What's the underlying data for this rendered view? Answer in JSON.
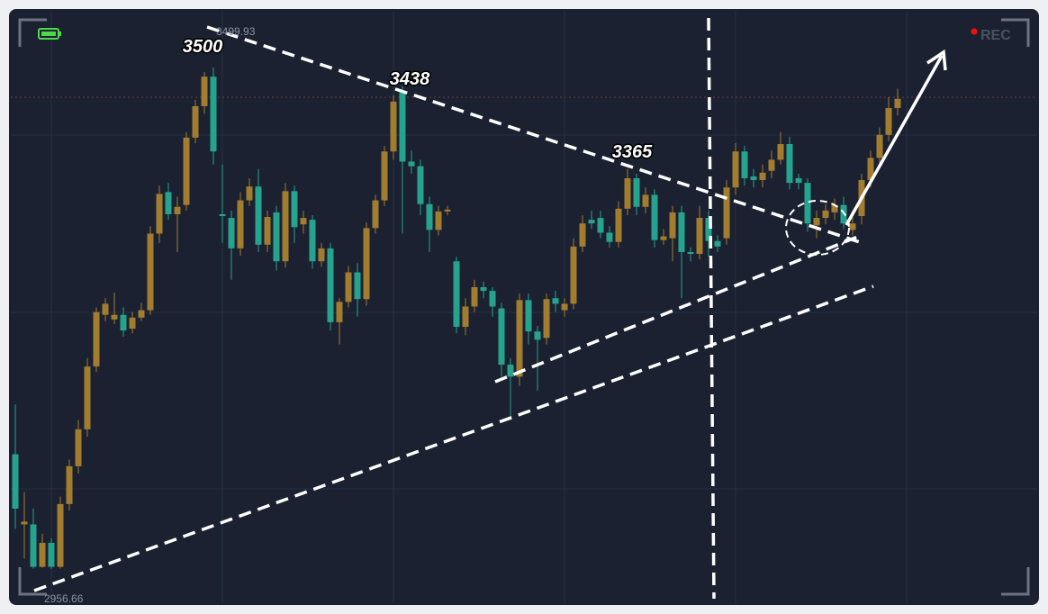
{
  "chart_data": {
    "type": "candlestick",
    "annotations": [
      "3500",
      "3438",
      "3365"
    ],
    "high_label": "3499.93",
    "low_label": "2956.66",
    "rec_label": "REC",
    "up_color": "#a27d2f",
    "down_color": "#26a38e",
    "open": [
      3081,
      3005,
      3005,
      2959,
      2985,
      2959,
      3027,
      3068,
      3108,
      3176,
      3232,
      3227,
      3232,
      3217,
      3229,
      3237,
      3320,
      3365,
      3341,
      3351,
      3424,
      3458,
      3490,
      3341,
      3337,
      3304,
      3356,
      3371,
      3308,
      3343,
      3290,
      3366,
      3330,
      3335,
      3290,
      3304,
      3224,
      3246,
      3278,
      3249,
      3326,
      3356,
      3409,
      3473,
      3398,
      3393,
      3352,
      3324,
      3344,
      3290,
      3219,
      3241,
      3262,
      3258,
      3239,
      3178,
      3165,
      3248,
      3214,
      3207,
      3250,
      3237,
      3244,
      3306,
      3335,
      3337,
      3321,
      3311,
      3347,
      3380,
      3349,
      3362,
      3313,
      3315,
      3343,
      3300,
      3298,
      3337,
      3312,
      3315,
      3370,
      3409,
      3382,
      3378,
      3388,
      3400,
      3417,
      3380,
      3375,
      3329,
      3337,
      3343,
      3351,
      3324,
      3339,
      3378,
      3402,
      3427,
      3456
    ],
    "high": [
      3135,
      3040,
      3022,
      2995,
      2990,
      3035,
      3075,
      3118,
      3185,
      3240,
      3250,
      3256,
      3240,
      3235,
      3245,
      3328,
      3372,
      3375,
      3360,
      3430,
      3465,
      3495,
      3499.93,
      3395,
      3345,
      3365,
      3380,
      3390,
      3345,
      3350,
      3375,
      3372,
      3345,
      3340,
      3310,
      3310,
      3250,
      3285,
      3288,
      3332,
      3362,
      3415,
      3470,
      3480,
      3410,
      3400,
      3360,
      3350,
      3350,
      3295,
      3250,
      3270,
      3268,
      3262,
      3245,
      3185,
      3255,
      3255,
      3220,
      3255,
      3258,
      3250,
      3315,
      3340,
      3345,
      3345,
      3328,
      3355,
      3390,
      3385,
      3370,
      3368,
      3325,
      3350,
      3350,
      3305,
      3350,
      3345,
      3318,
      3378,
      3418,
      3415,
      3390,
      3395,
      3410,
      3430,
      3425,
      3385,
      3380,
      3345,
      3352,
      3358,
      3360,
      3338,
      3385,
      3410,
      3435,
      3468,
      3477
    ],
    "low": [
      3000,
      2968,
      2957,
      2958,
      2956.66,
      2957,
      3020,
      3060,
      3100,
      3170,
      3225,
      3222,
      3208,
      3212,
      3225,
      3232,
      3310,
      3335,
      3300,
      3345,
      3418,
      3450,
      3395,
      3310,
      3270,
      3296,
      3350,
      3300,
      3300,
      3280,
      3283,
      3310,
      3320,
      3282,
      3284,
      3215,
      3200,
      3240,
      3230,
      3242,
      3320,
      3350,
      3400,
      3320,
      3385,
      3340,
      3300,
      3318,
      3340,
      3212,
      3210,
      3235,
      3250,
      3230,
      3165,
      3118,
      3155,
      3200,
      3150,
      3200,
      3235,
      3230,
      3238,
      3300,
      3325,
      3315,
      3305,
      3305,
      3340,
      3340,
      3342,
      3305,
      3308,
      3290,
      3250,
      3290,
      3292,
      3295,
      3300,
      3308,
      3362,
      3372,
      3370,
      3370,
      3380,
      3395,
      3368,
      3368,
      3322,
      3315,
      3330,
      3335,
      3325,
      3318,
      3330,
      3370,
      3395,
      3420,
      3448
    ],
    "close": [
      3022,
      3008,
      2959,
      2985,
      2959,
      3027,
      3068,
      3108,
      3176,
      3235,
      3244,
      3232,
      3215,
      3229,
      3237,
      3320,
      3363,
      3341,
      3349,
      3424,
      3458,
      3490,
      3409,
      3339,
      3304,
      3356,
      3371,
      3308,
      3338,
      3290,
      3366,
      3327,
      3337,
      3290,
      3304,
      3224,
      3246,
      3278,
      3249,
      3326,
      3356,
      3409,
      3463,
      3398,
      3393,
      3352,
      3324,
      3344,
      3346,
      3219,
      3241,
      3262,
      3258,
      3241,
      3178,
      3165,
      3248,
      3214,
      3205,
      3249,
      3244,
      3244,
      3306,
      3331,
      3331,
      3321,
      3311,
      3347,
      3380,
      3349,
      3362,
      3313,
      3317,
      3343,
      3300,
      3298,
      3337,
      3312,
      3306,
      3370,
      3409,
      3380,
      3378,
      3386,
      3400,
      3417,
      3375,
      3375,
      3331,
      3337,
      3345,
      3351,
      3331,
      3331,
      3378,
      3402,
      3427,
      3456,
      3466
    ]
  }
}
